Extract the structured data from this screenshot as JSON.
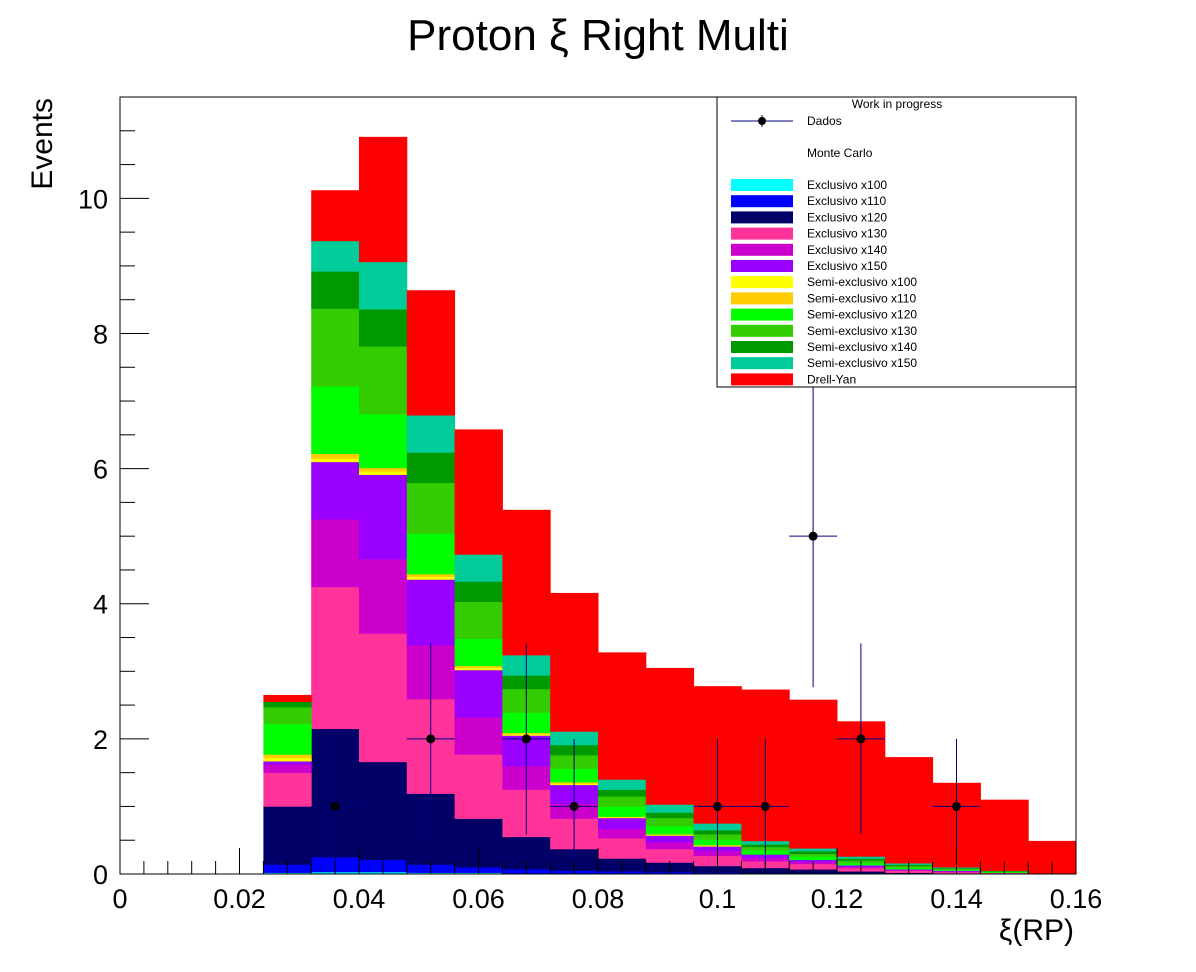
{
  "chart_data": {
    "type": "bar",
    "stacked": true,
    "title": "Proton ξ Right Multi",
    "xlabel": "ξ(RP)",
    "ylabel": "Events",
    "xlim": [
      0,
      0.16
    ],
    "ylim": [
      0,
      11.5
    ],
    "x_ticks": [
      "0",
      "0.02",
      "0.04",
      "0.06",
      "0.08",
      "0.1",
      "0.12",
      "0.14",
      "0.16"
    ],
    "y_ticks": [
      "0",
      "2",
      "4",
      "6",
      "8",
      "10"
    ],
    "bin_edges": [
      0.024,
      0.032,
      0.04,
      0.048,
      0.056,
      0.064,
      0.072,
      0.08,
      0.088,
      0.096,
      0.104,
      0.112,
      0.12,
      0.128,
      0.136,
      0.144,
      0.152,
      0.16
    ],
    "series": [
      {
        "name": "Exclusivo x100",
        "color": "#00ffff",
        "values": [
          0.02,
          0.03,
          0.03,
          0.02,
          0.02,
          0.01,
          0.01,
          0.01,
          0.01,
          0.0,
          0.0,
          0.0,
          0.0,
          0.0,
          0.0,
          0.0,
          0.0
        ]
      },
      {
        "name": "Exclusivo x110",
        "color": "#0000ff",
        "values": [
          0.12,
          0.22,
          0.18,
          0.12,
          0.08,
          0.06,
          0.04,
          0.03,
          0.02,
          0.02,
          0.01,
          0.01,
          0.0,
          0.0,
          0.0,
          0.0,
          0.0
        ]
      },
      {
        "name": "Exclusivo x120",
        "color": "#000066",
        "values": [
          0.86,
          1.9,
          1.45,
          1.05,
          0.72,
          0.48,
          0.32,
          0.19,
          0.14,
          0.1,
          0.08,
          0.06,
          0.04,
          0.02,
          0.01,
          0.01,
          0.0
        ]
      },
      {
        "name": "Exclusivo x130",
        "color": "#ff3399",
        "values": [
          0.5,
          2.1,
          1.9,
          1.4,
          0.95,
          0.7,
          0.45,
          0.3,
          0.2,
          0.15,
          0.1,
          0.08,
          0.05,
          0.03,
          0.02,
          0.01,
          0.0
        ]
      },
      {
        "name": "Exclusivo x140",
        "color": "#cc00cc",
        "values": [
          0.12,
          1.0,
          1.1,
          0.8,
          0.55,
          0.35,
          0.22,
          0.14,
          0.1,
          0.07,
          0.05,
          0.03,
          0.02,
          0.01,
          0.01,
          0.0,
          0.0
        ]
      },
      {
        "name": "Exclusivo x150",
        "color": "#9900ff",
        "values": [
          0.05,
          0.85,
          1.25,
          0.97,
          0.7,
          0.45,
          0.28,
          0.16,
          0.1,
          0.07,
          0.05,
          0.03,
          0.02,
          0.01,
          0.01,
          0.0,
          0.0
        ]
      },
      {
        "name": "Semi-exclusivo x100",
        "color": "#ffff00",
        "values": [
          0.05,
          0.05,
          0.05,
          0.04,
          0.03,
          0.02,
          0.02,
          0.01,
          0.01,
          0.01,
          0.0,
          0.0,
          0.0,
          0.0,
          0.0,
          0.0,
          0.0
        ]
      },
      {
        "name": "Semi-exclusivo x110",
        "color": "#ffcc00",
        "values": [
          0.05,
          0.07,
          0.05,
          0.04,
          0.03,
          0.02,
          0.02,
          0.01,
          0.01,
          0.01,
          0.0,
          0.0,
          0.0,
          0.0,
          0.0,
          0.0,
          0.0
        ]
      },
      {
        "name": "Semi-exclusivo x120",
        "color": "#00ff00",
        "values": [
          0.45,
          1.0,
          0.8,
          0.6,
          0.4,
          0.3,
          0.2,
          0.15,
          0.12,
          0.08,
          0.06,
          0.05,
          0.03,
          0.02,
          0.01,
          0.01,
          0.0
        ]
      },
      {
        "name": "Semi-exclusivo x130",
        "color": "#33cc00",
        "values": [
          0.25,
          1.15,
          1.0,
          0.75,
          0.55,
          0.35,
          0.2,
          0.15,
          0.12,
          0.08,
          0.05,
          0.04,
          0.04,
          0.03,
          0.02,
          0.01,
          0.0
        ]
      },
      {
        "name": "Semi-exclusivo x140",
        "color": "#009900",
        "values": [
          0.08,
          0.55,
          0.55,
          0.45,
          0.3,
          0.2,
          0.15,
          0.1,
          0.08,
          0.06,
          0.04,
          0.04,
          0.03,
          0.02,
          0.01,
          0.01,
          0.0
        ]
      },
      {
        "name": "Semi-exclusivo x150",
        "color": "#00cc99",
        "values": [
          0.0,
          0.45,
          0.7,
          0.55,
          0.4,
          0.3,
          0.2,
          0.15,
          0.12,
          0.1,
          0.05,
          0.04,
          0.03,
          0.02,
          0.01,
          0.0,
          0.0
        ]
      },
      {
        "name": "Drell-Yan",
        "color": "#ff0000",
        "values": [
          0.1,
          0.75,
          1.85,
          1.85,
          1.85,
          2.15,
          2.05,
          1.88,
          2.02,
          2.03,
          2.24,
          2.2,
          2.0,
          1.57,
          1.25,
          1.05,
          0.49
        ]
      }
    ],
    "data_points": {
      "name": "Dados",
      "color": "#000000",
      "error_color": "#000080",
      "points": [
        {
          "x": 0.036,
          "y": 1
        },
        {
          "x": 0.052,
          "y": 2
        },
        {
          "x": 0.068,
          "y": 2
        },
        {
          "x": 0.076,
          "y": 1
        },
        {
          "x": 0.1,
          "y": 1
        },
        {
          "x": 0.108,
          "y": 1
        },
        {
          "x": 0.116,
          "y": 5
        },
        {
          "x": 0.124,
          "y": 2
        },
        {
          "x": 0.14,
          "y": 1
        }
      ],
      "x_error": 0.004
    },
    "legend": {
      "placement": "top-right",
      "header": "Work in progress",
      "mc_label": "Monte Carlo"
    }
  }
}
